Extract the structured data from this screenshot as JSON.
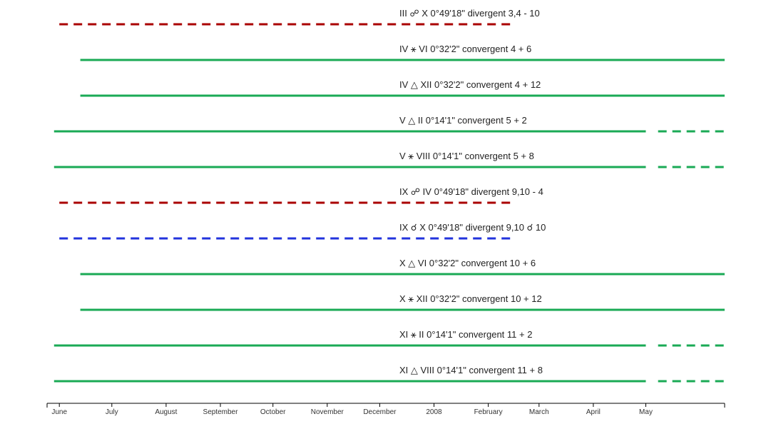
{
  "chart_data": {
    "type": "timeline",
    "x_ticks": [
      "June",
      "July",
      "August",
      "September",
      "October",
      "November",
      "December",
      "2008",
      "February",
      "March",
      "April",
      "May"
    ],
    "x_range": [
      "2007-05-25",
      "2008-06-15"
    ],
    "grid": false,
    "legend": "none",
    "colors": {
      "convergent": "#1aaa55",
      "divergent": "#aa0000",
      "conjunction": "#2233dd"
    },
    "aspects": [
      {
        "label": "III ☍ X 0°49'18\" divergent 3,4 - 10",
        "kind": "divergent",
        "segments": [
          {
            "start": "2007-06-01",
            "end": "2008-02-15",
            "style": "dashed"
          }
        ]
      },
      {
        "label": "IV ⚹ VI 0°32'2\" convergent 4 + 6",
        "kind": "convergent",
        "segments": [
          {
            "start": "2007-06-13",
            "end": "2008-06-15",
            "style": "solid"
          }
        ]
      },
      {
        "label": "IV △ XII 0°32'2\" convergent 4 + 12",
        "kind": "convergent",
        "segments": [
          {
            "start": "2007-06-13",
            "end": "2008-06-15",
            "style": "solid"
          }
        ]
      },
      {
        "label": "V △ II 0°14'1\" convergent 5 + 2",
        "kind": "convergent",
        "segments": [
          {
            "start": "2007-05-29",
            "end": "2008-05-01",
            "style": "solid"
          },
          {
            "start": "2008-05-08",
            "end": "2008-06-15",
            "style": "dashed"
          }
        ]
      },
      {
        "label": "V ⚹ VIII 0°14'1\" convergent 5 + 8",
        "kind": "convergent",
        "segments": [
          {
            "start": "2007-05-29",
            "end": "2008-05-01",
            "style": "solid"
          },
          {
            "start": "2008-05-08",
            "end": "2008-06-15",
            "style": "dashed"
          }
        ]
      },
      {
        "label": "IX ☍ IV 0°49'18\" divergent 9,10 - 4",
        "kind": "divergent",
        "segments": [
          {
            "start": "2007-06-01",
            "end": "2008-02-15",
            "style": "dashed"
          }
        ]
      },
      {
        "label": "IX ☌ X 0°49'18\" divergent 9,10 ☌ 10",
        "kind": "conjunction",
        "segments": [
          {
            "start": "2007-06-01",
            "end": "2008-02-15",
            "style": "dashed"
          }
        ]
      },
      {
        "label": "X △ VI 0°32'2\" convergent 10 + 6",
        "kind": "convergent",
        "segments": [
          {
            "start": "2007-06-13",
            "end": "2008-06-15",
            "style": "solid"
          }
        ]
      },
      {
        "label": "X ⚹ XII 0°32'2\" convergent 10 + 12",
        "kind": "convergent",
        "segments": [
          {
            "start": "2007-06-13",
            "end": "2008-06-15",
            "style": "solid"
          }
        ]
      },
      {
        "label": "XI ⚹ II 0°14'1\" convergent 11 + 2",
        "kind": "convergent",
        "segments": [
          {
            "start": "2007-05-29",
            "end": "2008-05-01",
            "style": "solid"
          },
          {
            "start": "2008-05-08",
            "end": "2008-06-15",
            "style": "dashed"
          }
        ]
      },
      {
        "label": "XI △ VIII 0°14'1\" convergent 11 + 8",
        "kind": "convergent",
        "segments": [
          {
            "start": "2007-05-29",
            "end": "2008-05-01",
            "style": "solid"
          },
          {
            "start": "2008-05-08",
            "end": "2008-06-15",
            "style": "dashed"
          }
        ]
      }
    ]
  }
}
